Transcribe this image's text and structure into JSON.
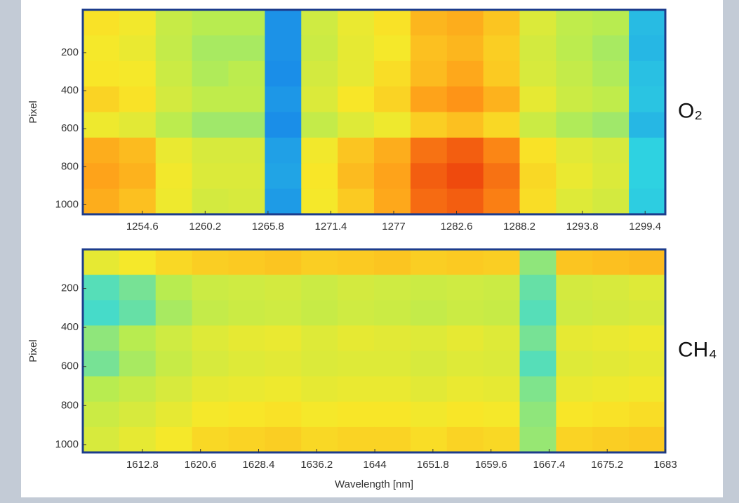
{
  "chart_data": [
    {
      "type": "heatmap",
      "annotation": "O₂",
      "y_label": "Pixel",
      "xlim": [
        1249.3,
        1301.2
      ],
      "xticks": [
        1254.6,
        1260.2,
        1265.8,
        1271.4,
        1277,
        1282.6,
        1288.2,
        1293.8,
        1299.4
      ],
      "ylim": [
        1050,
        -25
      ],
      "yticks": [
        200,
        400,
        600,
        800,
        1000
      ],
      "colormap": [
        "#0a3cc8",
        "#1a8ce8",
        "#30d8e0",
        "#b8ec50",
        "#f8e828",
        "#ff9818",
        "#e82808"
      ],
      "values": [
        [
          0.68,
          0.65,
          0.54,
          0.5,
          0.5,
          0.18,
          0.56,
          0.63,
          0.68,
          0.77,
          0.79,
          0.74,
          0.59,
          0.52,
          0.5,
          0.27
        ],
        [
          0.66,
          0.63,
          0.53,
          0.48,
          0.48,
          0.18,
          0.55,
          0.62,
          0.66,
          0.75,
          0.77,
          0.72,
          0.57,
          0.51,
          0.48,
          0.26
        ],
        [
          0.67,
          0.66,
          0.55,
          0.49,
          0.51,
          0.17,
          0.57,
          0.62,
          0.69,
          0.76,
          0.8,
          0.73,
          0.58,
          0.53,
          0.49,
          0.28
        ],
        [
          0.71,
          0.68,
          0.57,
          0.52,
          0.52,
          0.19,
          0.59,
          0.67,
          0.71,
          0.81,
          0.84,
          0.78,
          0.62,
          0.55,
          0.52,
          0.29
        ],
        [
          0.64,
          0.61,
          0.51,
          0.47,
          0.47,
          0.17,
          0.53,
          0.6,
          0.64,
          0.72,
          0.75,
          0.7,
          0.55,
          0.49,
          0.47,
          0.26
        ],
        [
          0.79,
          0.76,
          0.63,
          0.58,
          0.58,
          0.21,
          0.65,
          0.74,
          0.79,
          0.89,
          0.92,
          0.86,
          0.68,
          0.61,
          0.58,
          0.32
        ],
        [
          0.81,
          0.78,
          0.65,
          0.59,
          0.59,
          0.22,
          0.67,
          0.76,
          0.81,
          0.92,
          0.95,
          0.89,
          0.7,
          0.63,
          0.59,
          0.32
        ],
        [
          0.79,
          0.75,
          0.64,
          0.57,
          0.58,
          0.2,
          0.66,
          0.73,
          0.8,
          0.9,
          0.92,
          0.87,
          0.69,
          0.6,
          0.57,
          0.31
        ]
      ]
    },
    {
      "type": "heatmap",
      "annotation": "CH₄",
      "y_label": "Pixel",
      "x_label": "Wavelength [nm]",
      "xlim": [
        1604.8,
        1683
      ],
      "xticks": [
        1612.8,
        1620.6,
        1628.4,
        1636.2,
        1644,
        1651.8,
        1659.6,
        1667.4,
        1675.2,
        1683
      ],
      "ylim": [
        1040,
        0
      ],
      "yticks": [
        200,
        400,
        600,
        800,
        1000
      ],
      "colormap": [
        "#0a3cc8",
        "#1a8ce8",
        "#30d8e0",
        "#b8ec50",
        "#f8e828",
        "#ff9818",
        "#e82808"
      ],
      "values": [
        [
          0.62,
          0.66,
          0.7,
          0.72,
          0.73,
          0.74,
          0.72,
          0.73,
          0.74,
          0.72,
          0.73,
          0.72,
          0.45,
          0.74,
          0.75,
          0.76
        ],
        [
          0.38,
          0.42,
          0.5,
          0.55,
          0.56,
          0.57,
          0.55,
          0.57,
          0.56,
          0.55,
          0.56,
          0.55,
          0.4,
          0.57,
          0.58,
          0.6
        ],
        [
          0.36,
          0.4,
          0.48,
          0.53,
          0.55,
          0.56,
          0.54,
          0.56,
          0.55,
          0.53,
          0.55,
          0.54,
          0.38,
          0.56,
          0.57,
          0.58
        ],
        [
          0.45,
          0.5,
          0.56,
          0.6,
          0.62,
          0.63,
          0.6,
          0.62,
          0.61,
          0.6,
          0.62,
          0.6,
          0.42,
          0.62,
          0.63,
          0.64
        ],
        [
          0.42,
          0.48,
          0.54,
          0.58,
          0.6,
          0.61,
          0.59,
          0.6,
          0.6,
          0.58,
          0.6,
          0.59,
          0.38,
          0.6,
          0.61,
          0.62
        ],
        [
          0.5,
          0.54,
          0.58,
          0.62,
          0.63,
          0.64,
          0.62,
          0.63,
          0.63,
          0.61,
          0.63,
          0.62,
          0.43,
          0.63,
          0.64,
          0.65
        ],
        [
          0.55,
          0.58,
          0.62,
          0.66,
          0.67,
          0.68,
          0.66,
          0.67,
          0.67,
          0.65,
          0.67,
          0.66,
          0.45,
          0.67,
          0.68,
          0.69
        ],
        [
          0.58,
          0.62,
          0.66,
          0.7,
          0.71,
          0.72,
          0.7,
          0.71,
          0.71,
          0.69,
          0.71,
          0.7,
          0.46,
          0.71,
          0.72,
          0.73
        ]
      ]
    }
  ]
}
